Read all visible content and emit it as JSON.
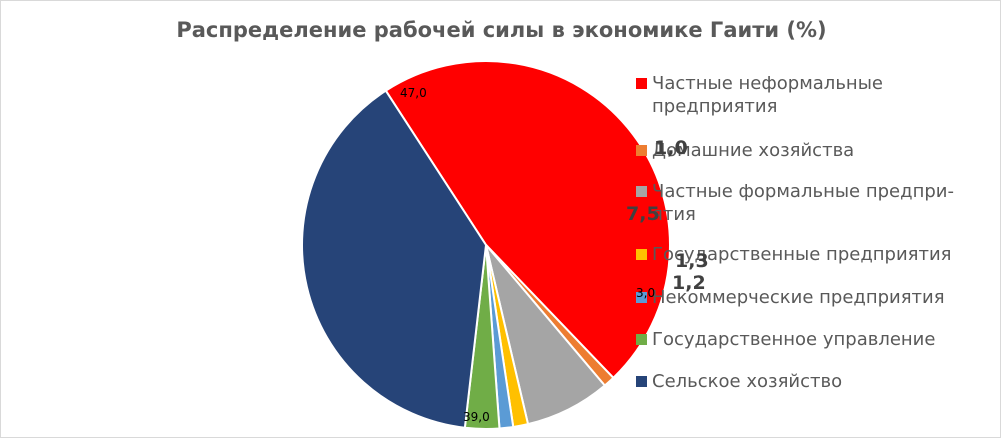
{
  "chart_data": {
    "type": "pie",
    "title": "Распределение рабочей силы в экономике Гаити (%)",
    "legend_position": "right",
    "categories": [
      "Частные неформальные предприятия",
      "Домашние хозяйства",
      "Частные формальные предпри-ятия",
      "Государственные предприятия",
      "Некоммерческие предприятия",
      "Государственное управление",
      "Сельское хозяйство"
    ],
    "values": [
      47.0,
      1.0,
      7.5,
      1.3,
      1.2,
      3.0,
      39.0
    ],
    "data_labels": [
      "47,0",
      "1,0",
      "7,5",
      "1,3",
      "1,2",
      "3,0",
      "39,0"
    ],
    "colors": [
      "#ff0000",
      "#ed7d31",
      "#a5a5a5",
      "#ffc000",
      "#5b9bd5",
      "#70ad47",
      "#264478"
    ]
  }
}
